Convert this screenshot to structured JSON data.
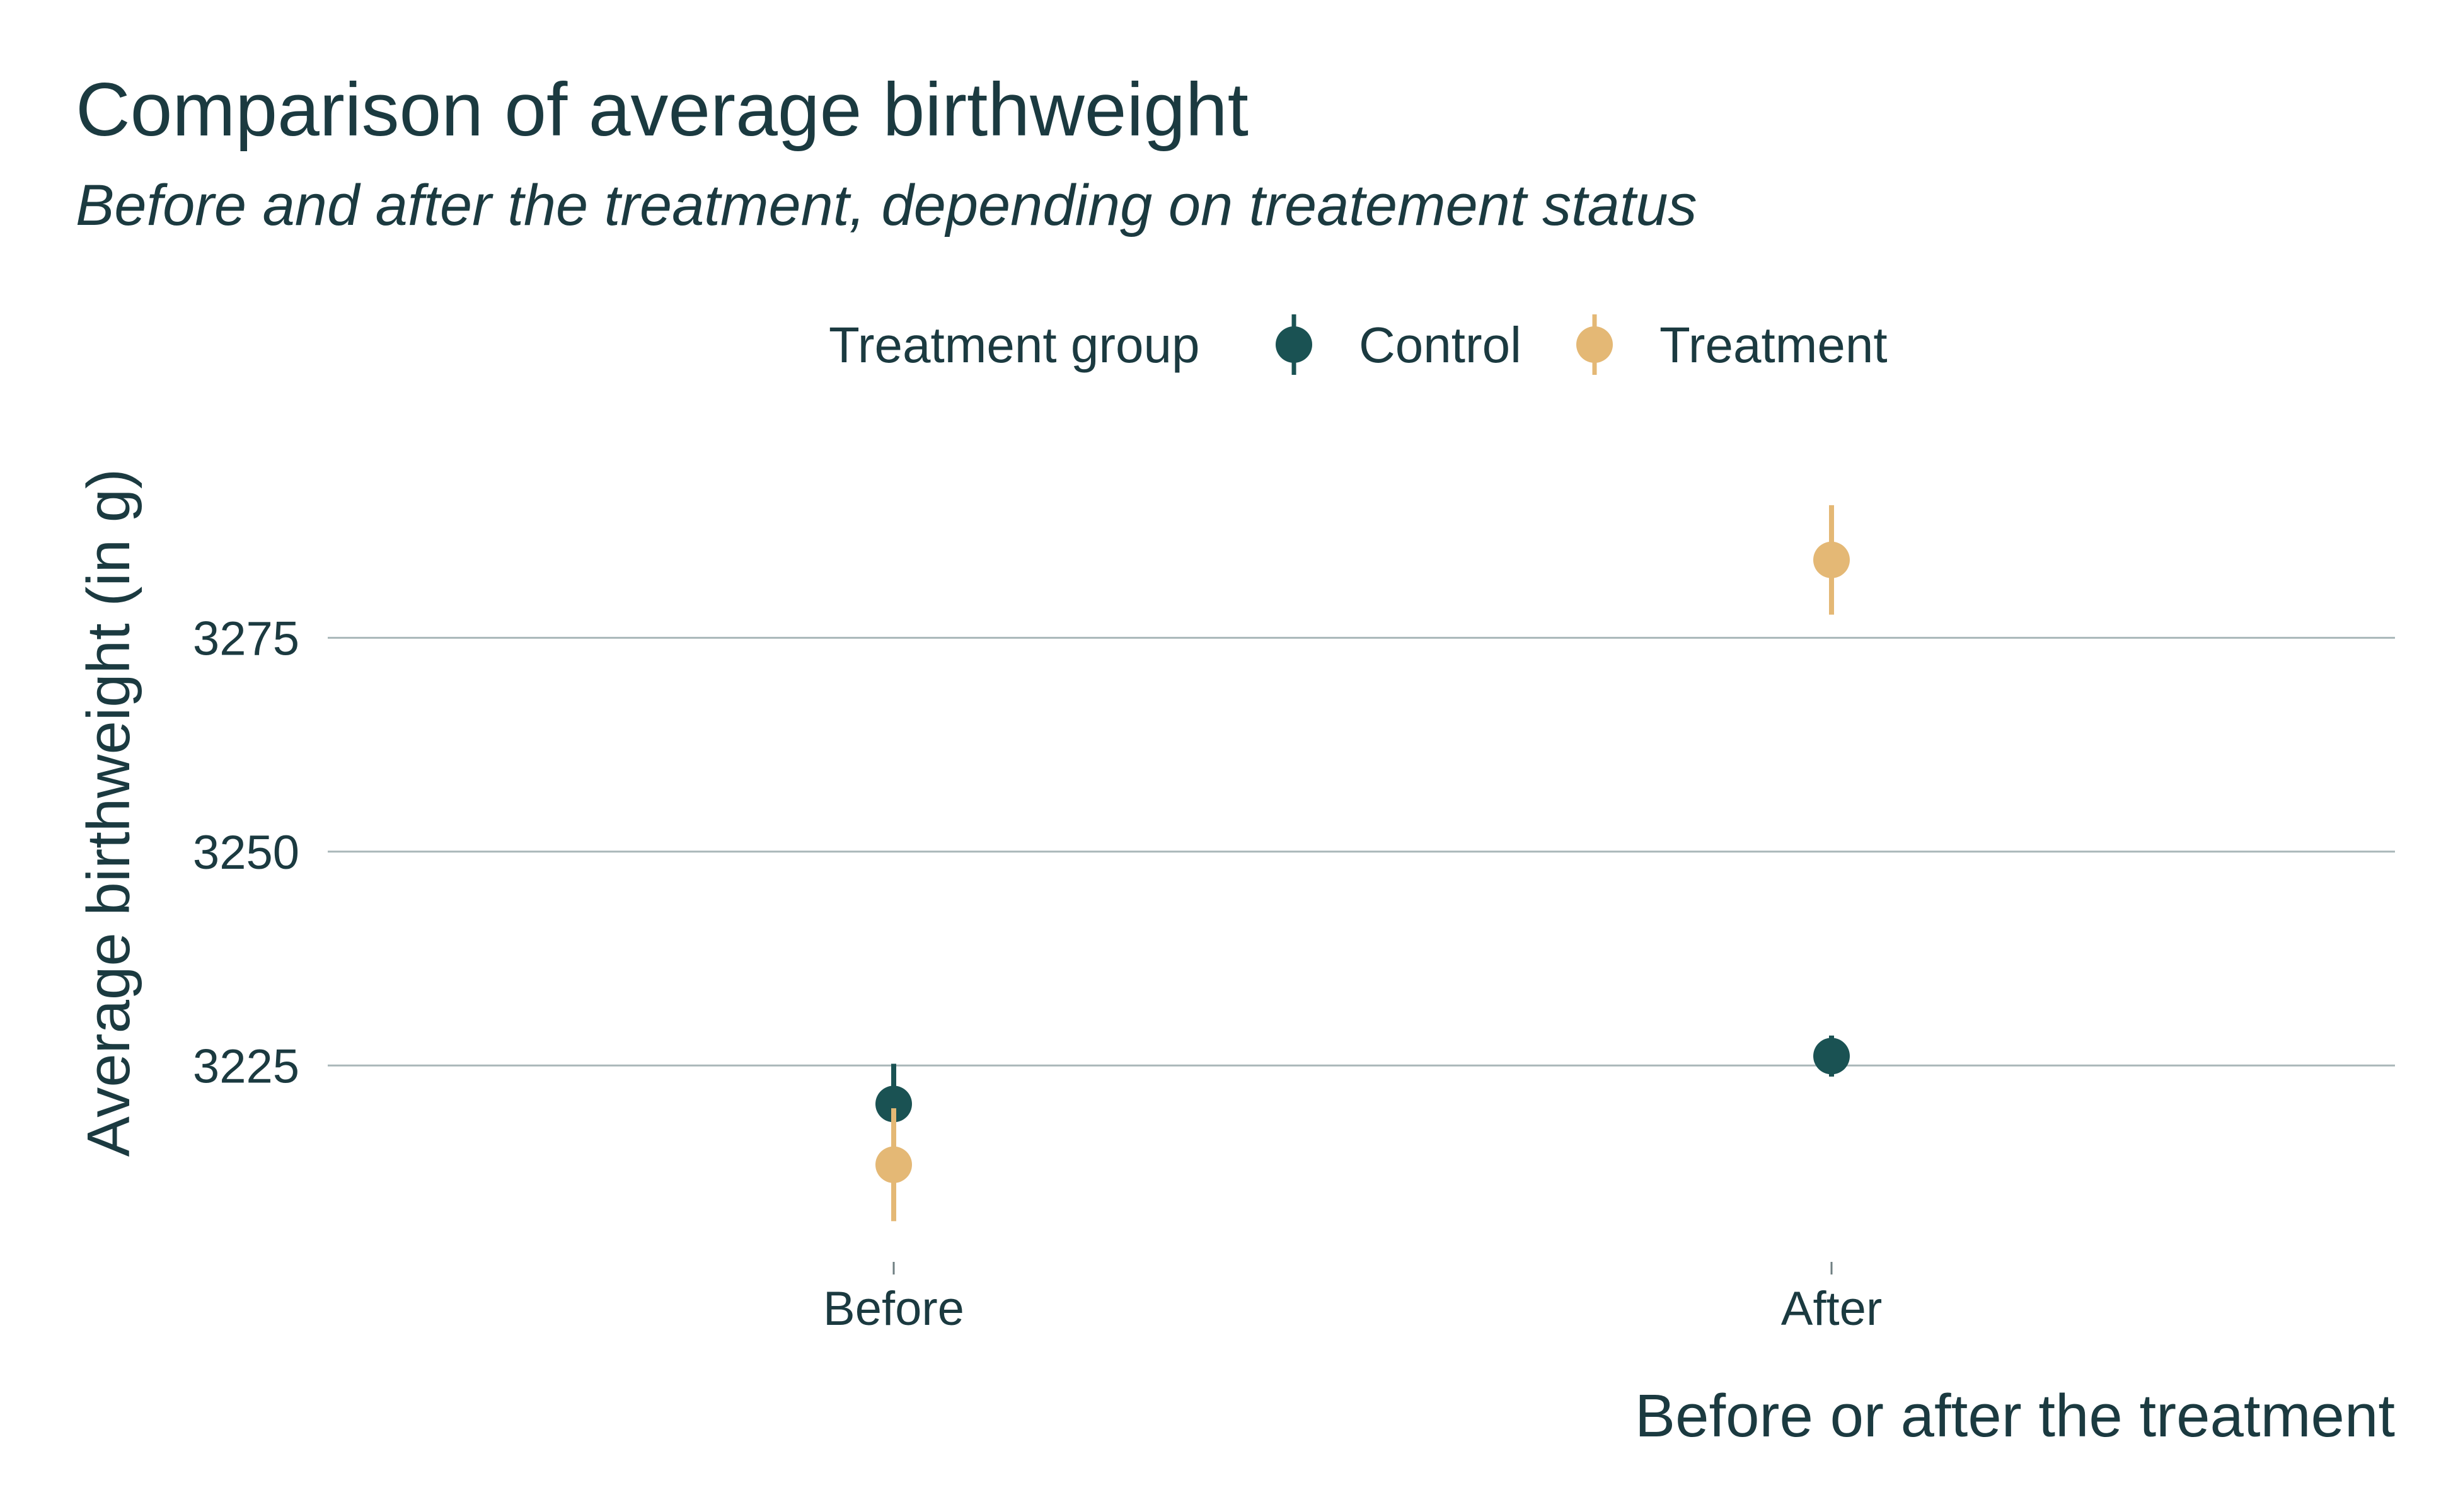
{
  "chart_data": {
    "type": "scatter",
    "title": "Comparison of average birthweight",
    "subtitle": "Before and after the treatment, depending on treatement status",
    "xlabel": "Before or after the treatment",
    "ylabel": "Average birthweight (in g)",
    "categories": [
      "Before",
      "After"
    ],
    "ylim": [
      3203,
      3298
    ],
    "yticks": [
      3225,
      3250,
      3275
    ],
    "grid": "horizontal",
    "legend": {
      "title": "Treatment group",
      "placement": "top",
      "entries": [
        "Control",
        "Treatment"
      ]
    },
    "series": [
      {
        "name": "Control",
        "color": "#1a5253",
        "values": [
          3220.5,
          3226.1
        ],
        "lower": [
          3215.8,
          3223.7
        ],
        "upper": [
          3225.2,
          3228.5
        ]
      },
      {
        "name": "Treatment",
        "color": "#e4b875",
        "values": [
          3213.4,
          3284.1
        ],
        "lower": [
          3206.8,
          3277.7
        ],
        "upper": [
          3220.0,
          3290.5
        ]
      }
    ]
  }
}
